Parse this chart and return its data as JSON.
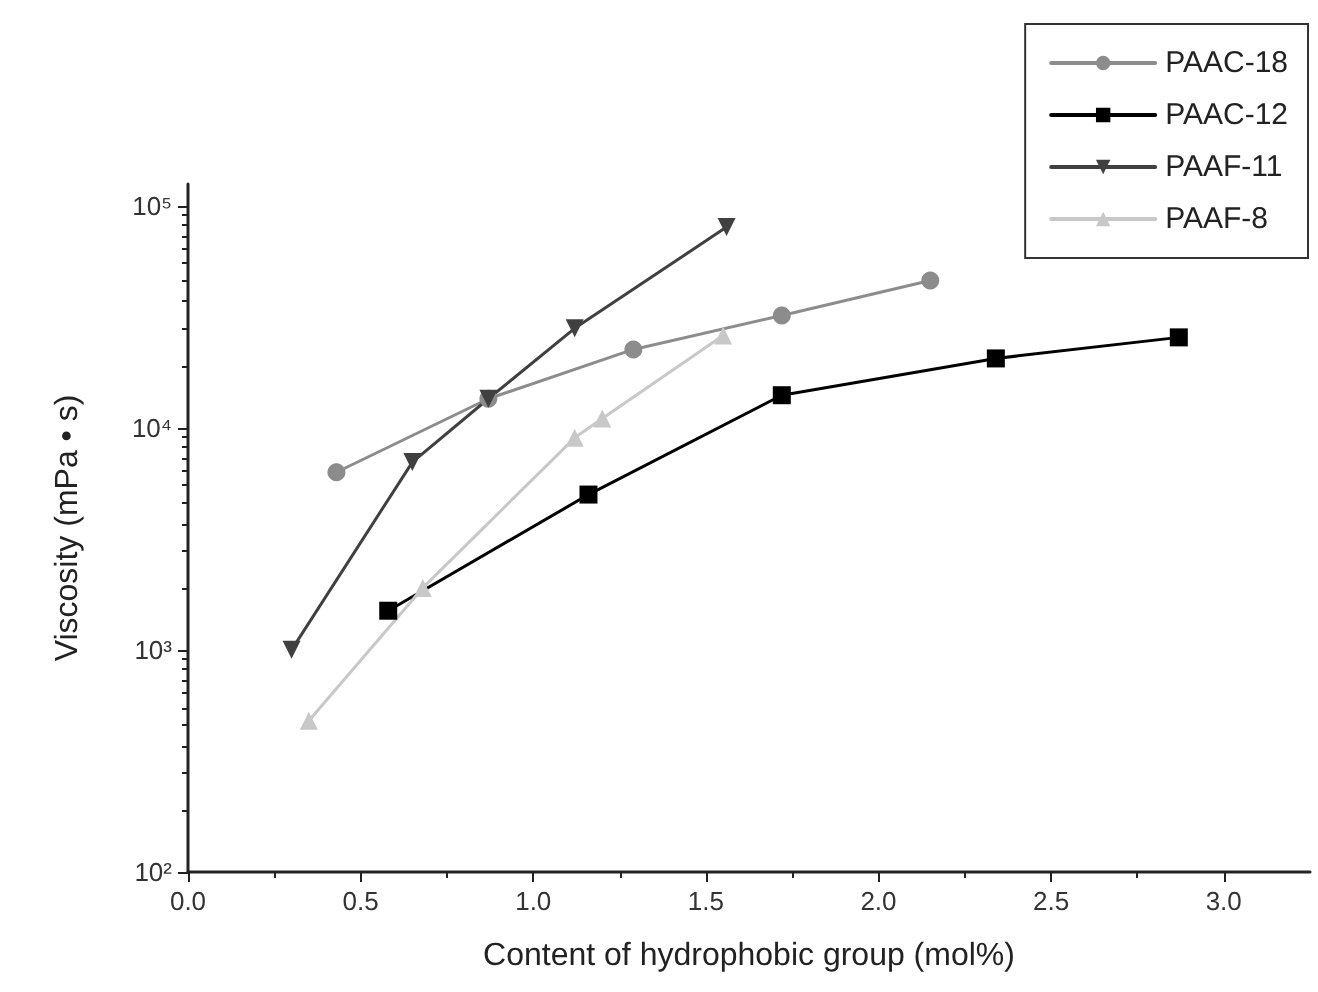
{
  "chart_data": {
    "type": "line",
    "xlabel": "Content of hydrophobic group (mol%)",
    "ylabel": "Viscosity (mPa • s)",
    "xlim": [
      0,
      3.25
    ],
    "xticks": [
      {
        "value": 0,
        "label": "0.0"
      },
      {
        "value": 0.5,
        "label": "0.5"
      },
      {
        "value": 1,
        "label": "1.0"
      },
      {
        "value": 1.5,
        "label": "1.5"
      },
      {
        "value": 2,
        "label": "2.0"
      },
      {
        "value": 2.5,
        "label": "2.5"
      },
      {
        "value": 3,
        "label": "3.0"
      }
    ],
    "ylim": [
      100,
      125000
    ],
    "yticks": [
      {
        "value": 100,
        "label": "10²"
      },
      {
        "value": 1000,
        "label": "10³"
      },
      {
        "value": 10000,
        "label": "10⁴"
      },
      {
        "value": 100000,
        "label": "10⁵"
      }
    ],
    "log": "y",
    "grid": false,
    "legend": "top right",
    "line_style": "solid",
    "series": [
      {
        "name": "PAAC-18",
        "color": "#8c8c8c",
        "marker": "circle",
        "x": [
          0.43,
          0.87,
          1.29,
          1.72,
          2.15
        ],
        "values": [
          6300,
          13500,
          22500,
          32000,
          46000
        ]
      },
      {
        "name": "PAAC-12",
        "color": "#000000",
        "marker": "square",
        "x": [
          0.58,
          1.16,
          1.72,
          2.34,
          2.87
        ],
        "values": [
          1500,
          5000,
          14000,
          20500,
          25500
        ]
      },
      {
        "name": "PAAF-11",
        "color": "#404040",
        "marker": "triangle-down",
        "x": [
          0.3,
          0.65,
          0.87,
          1.12,
          1.56
        ],
        "values": [
          1000,
          7000,
          13500,
          28000,
          80000
        ]
      },
      {
        "name": "PAAF-8",
        "color": "#c8c8c8",
        "marker": "triangle",
        "x": [
          0.35,
          0.68,
          1.12,
          1.2,
          1.55
        ],
        "values": [
          480,
          1900,
          9000,
          11000,
          26000
        ]
      }
    ]
  }
}
